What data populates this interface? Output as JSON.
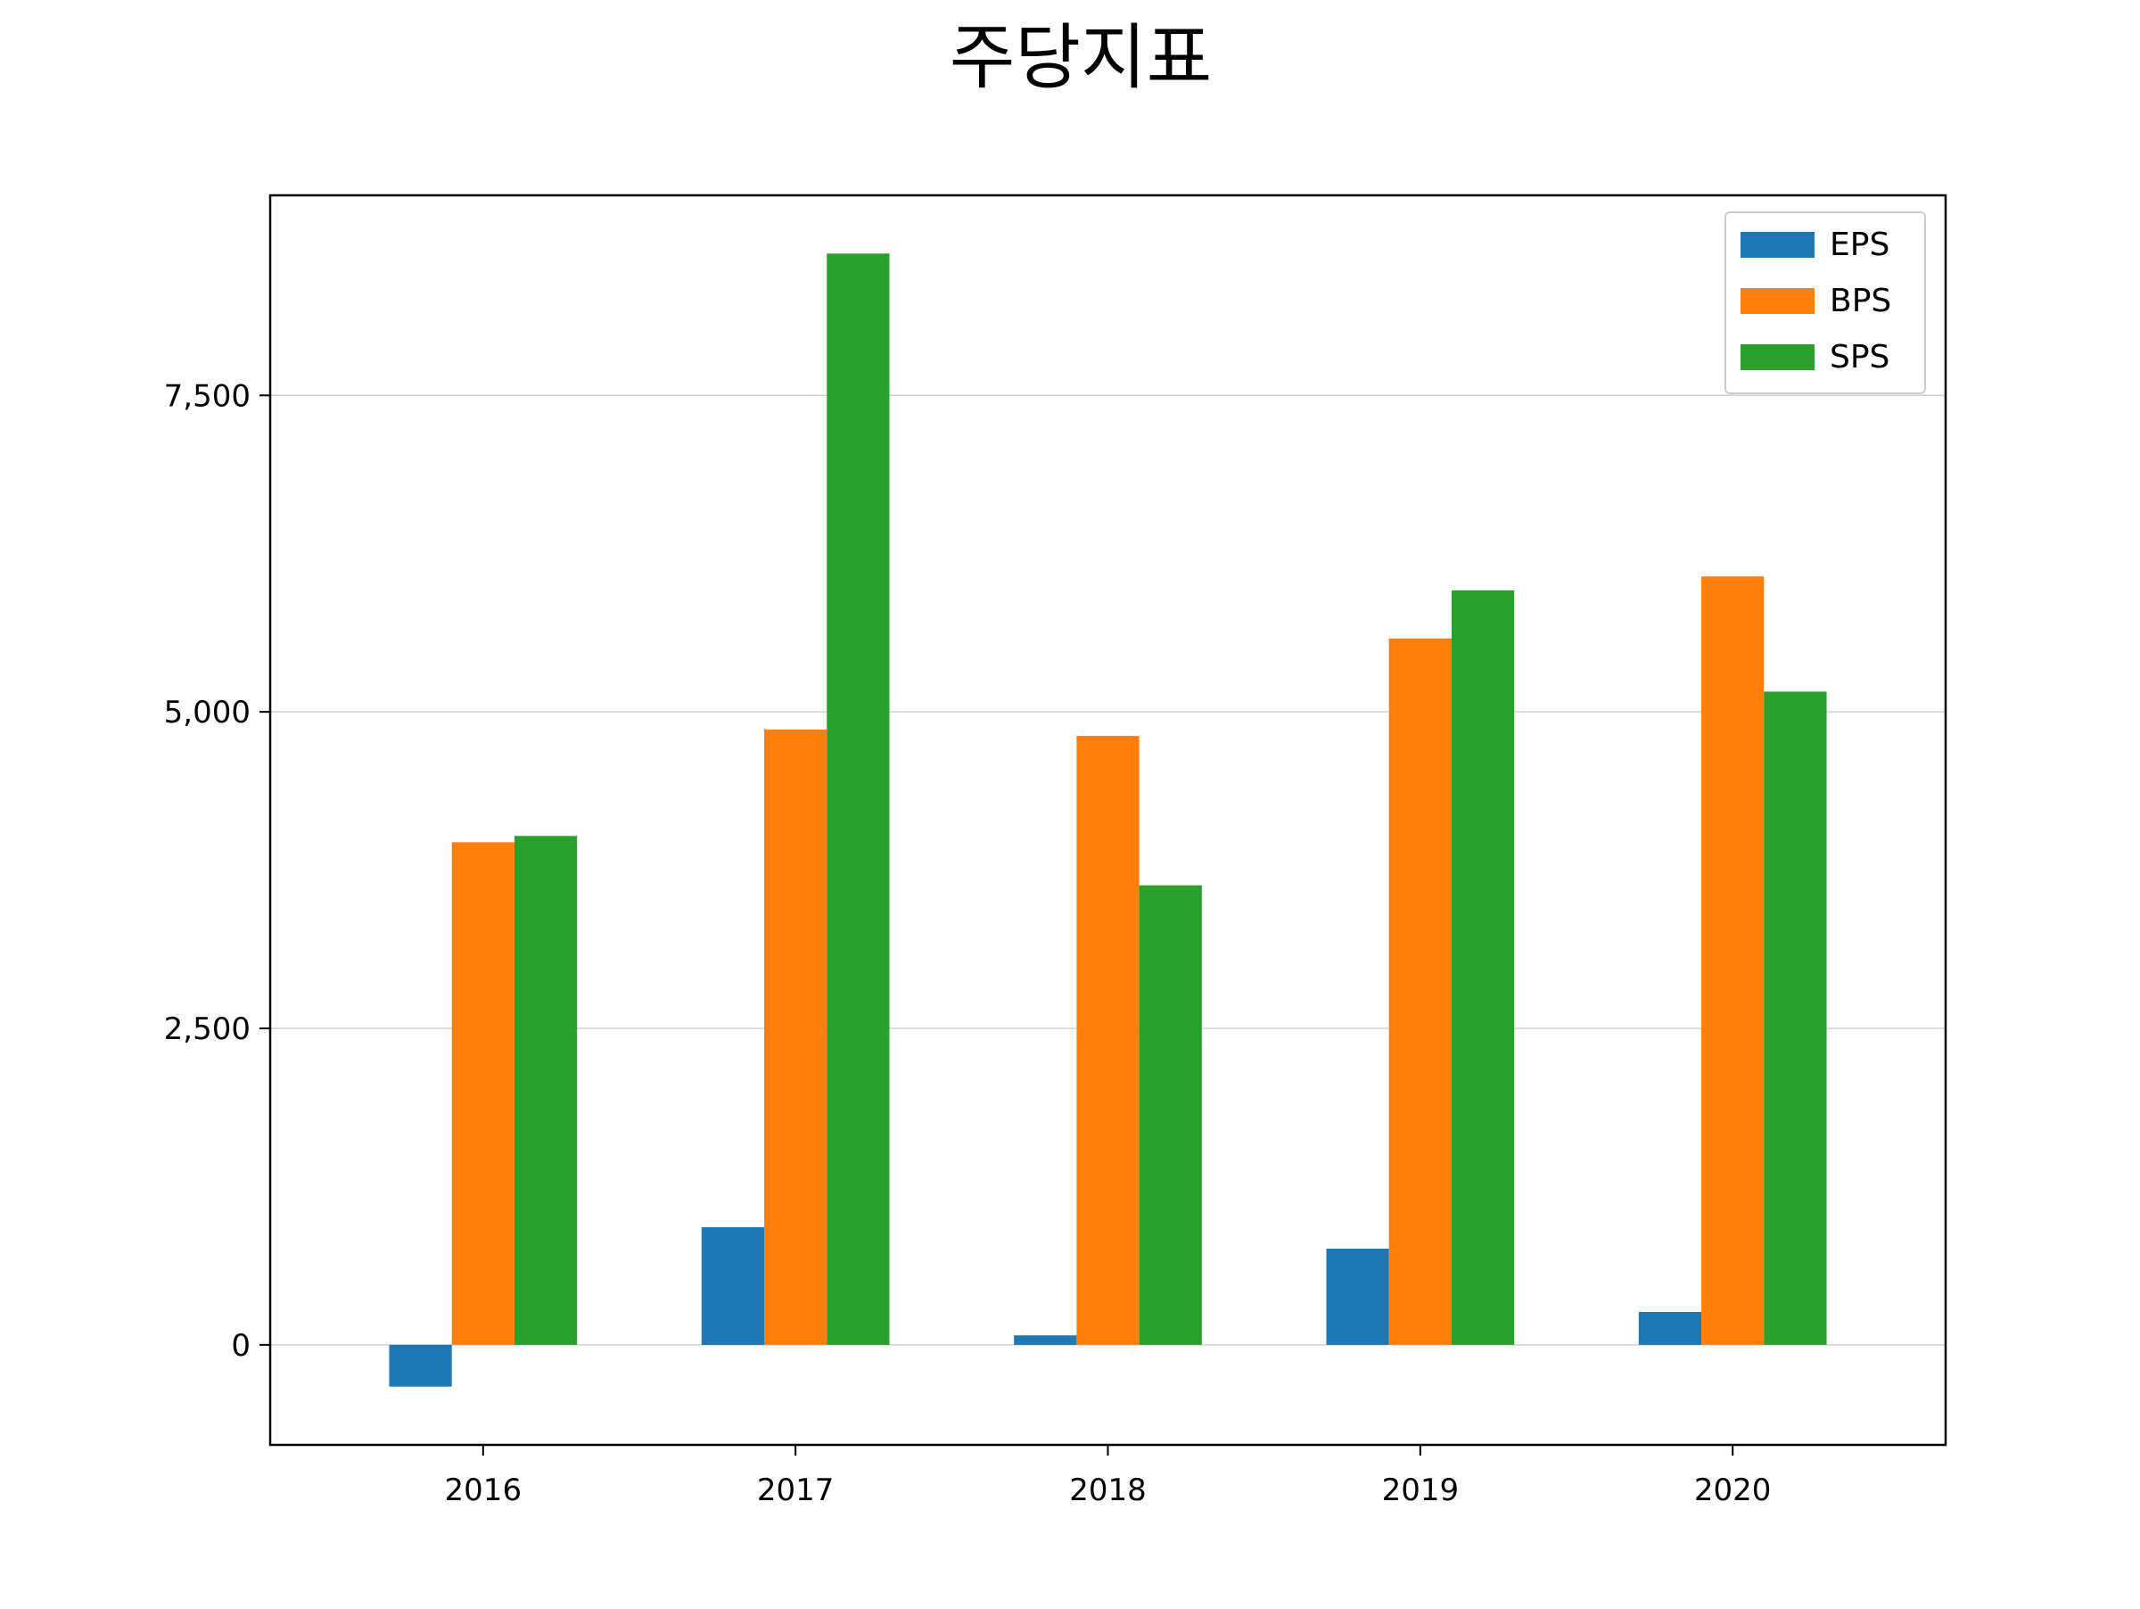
{
  "chart_data": {
    "type": "bar",
    "title": "주당지표",
    "xlabel": "",
    "ylabel": "",
    "categories": [
      "2016",
      "2017",
      "2018",
      "2019",
      "2020"
    ],
    "series": [
      {
        "name": "EPS",
        "color": "#1f77b4",
        "values": [
          -330,
          930,
          75,
          760,
          260
        ]
      },
      {
        "name": "BPS",
        "color": "#ff7f0e",
        "values": [
          3970,
          4860,
          4810,
          5580,
          6070
        ]
      },
      {
        "name": "SPS",
        "color": "#2ca02c",
        "values": [
          4020,
          8620,
          3630,
          5960,
          5160
        ]
      }
    ],
    "y_ticks": [
      0,
      2500,
      5000,
      7500
    ],
    "y_tick_labels": [
      "0",
      "2,500",
      "5,000",
      "7,500"
    ],
    "ylim": [
      -790,
      9080
    ],
    "grid": "horizontal",
    "legend_position": "top-right"
  }
}
